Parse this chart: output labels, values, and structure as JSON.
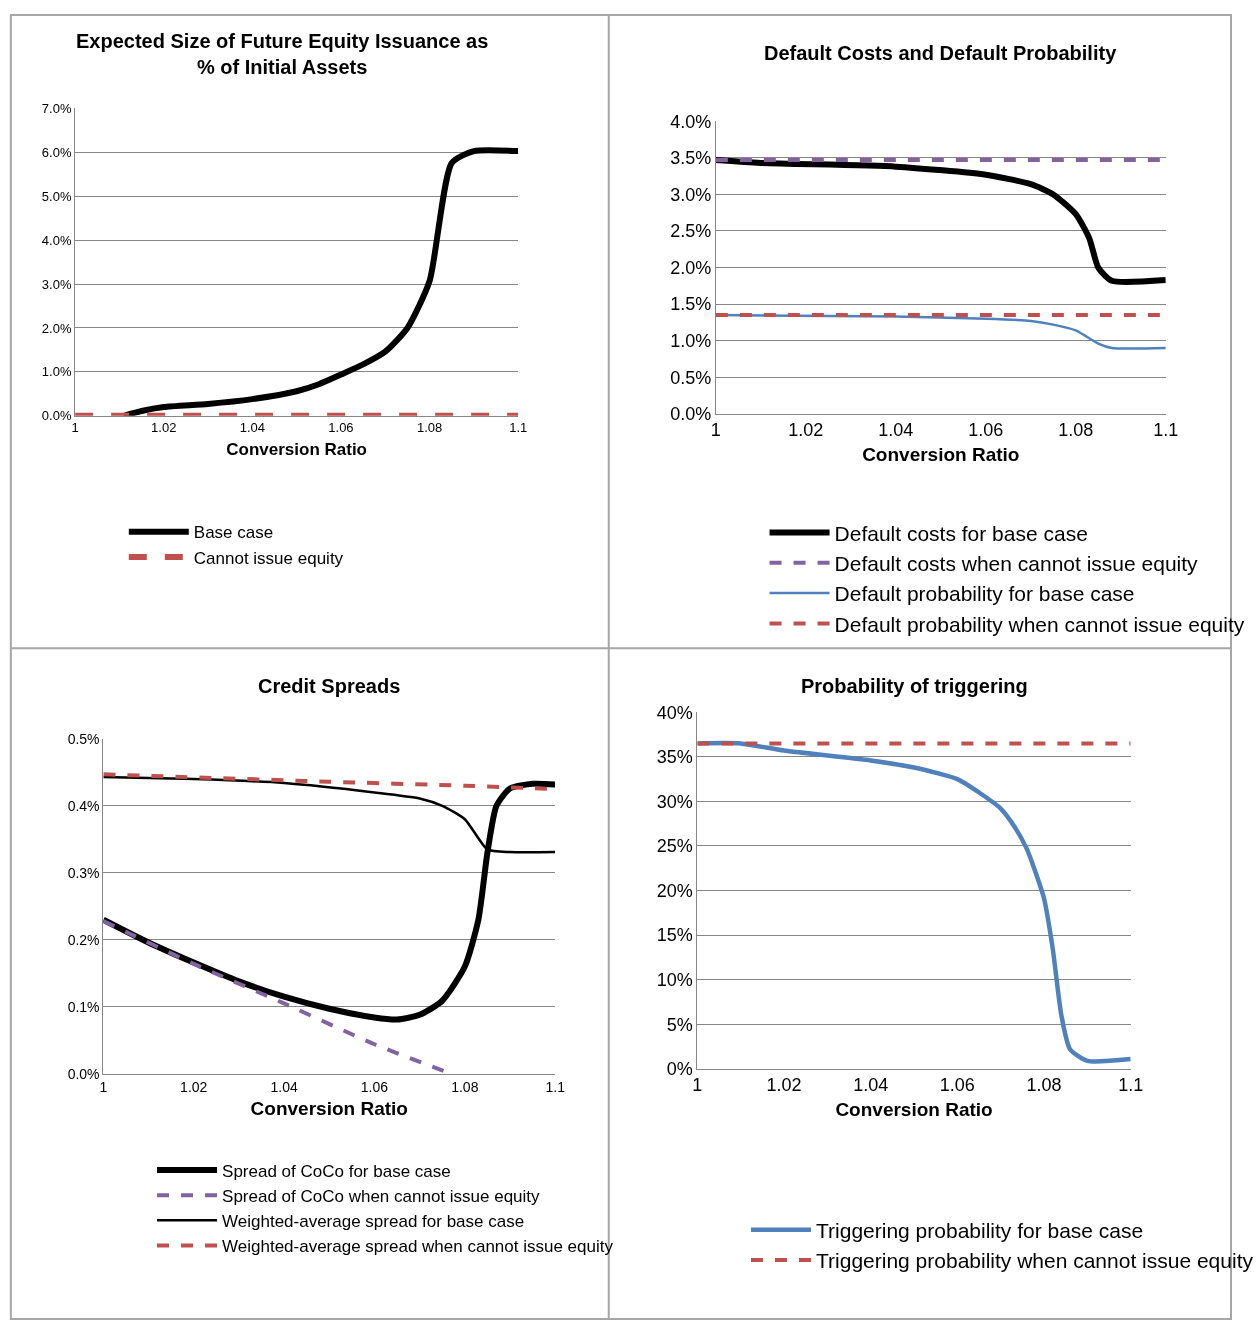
{
  "chart_data": [
    {
      "type": "line",
      "title": "Expected Size of Future Equity Issuance as\n% of Initial Assets",
      "xlabel": "Conversion Ratio",
      "xlim": [
        1,
        1.1
      ],
      "xticks": [
        1,
        1.02,
        1.04,
        1.06,
        1.08,
        1.1
      ],
      "ylim": [
        0,
        7
      ],
      "yticks": [
        {
          "value": 0,
          "label": "0.0%"
        },
        {
          "value": 1,
          "label": "1.0%"
        },
        {
          "value": 2,
          "label": "2.0%"
        },
        {
          "value": 3,
          "label": "3.0%"
        },
        {
          "value": 4,
          "label": "4.0%"
        },
        {
          "value": 5,
          "label": "5.0%"
        },
        {
          "value": 6,
          "label": "6.0%"
        },
        {
          "value": 7,
          "label": "7.0%"
        }
      ],
      "grid": "y",
      "legend": "bottom",
      "marker": "none",
      "series": [
        {
          "name": "Base case",
          "color": "#000000",
          "line_style": "solid",
          "x": [
            1.011,
            1.015,
            1.02,
            1.03,
            1.04,
            1.05,
            1.055,
            1.06,
            1.065,
            1.07,
            1.075,
            1.08,
            1.085,
            1.09,
            1.1
          ],
          "values": [
            0,
            0.11,
            0.2,
            0.27,
            0.38,
            0.56,
            0.72,
            0.94,
            1.17,
            1.46,
            2.0,
            3.07,
            5.76,
            6.03,
            6.03
          ]
        },
        {
          "name": "Cannot issue equity",
          "color": "#c0504d",
          "line_style": "dashed",
          "x": [
            1,
            1.1
          ],
          "values": [
            0,
            0
          ]
        }
      ]
    },
    {
      "type": "line",
      "title": "Default Costs and Default Probability",
      "xlabel": "Conversion Ratio",
      "xlim": [
        1,
        1.1
      ],
      "xticks": [
        1,
        1.02,
        1.04,
        1.06,
        1.08,
        1.1
      ],
      "ylim": [
        0,
        4
      ],
      "yticks": [
        {
          "value": 0,
          "label": "0.0%"
        },
        {
          "value": 0.5,
          "label": "0.5%"
        },
        {
          "value": 1,
          "label": "1.0%"
        },
        {
          "value": 1.5,
          "label": "1.5%"
        },
        {
          "value": 2,
          "label": "2.0%"
        },
        {
          "value": 2.5,
          "label": "2.5%"
        },
        {
          "value": 3,
          "label": "3.0%"
        },
        {
          "value": 3.5,
          "label": "3.5%"
        },
        {
          "value": 4,
          "label": "4.0%"
        }
      ],
      "grid": "y",
      "legend": "bottom",
      "marker": "none",
      "series": [
        {
          "name": "Default costs for base case",
          "color": "#000000",
          "line_style": "solid",
          "x": [
            1,
            1.01,
            1.04,
            1.06,
            1.07,
            1.075,
            1.08,
            1.083,
            1.085,
            1.088,
            1.1
          ],
          "values": [
            3.47,
            3.43,
            3.38,
            3.27,
            3.14,
            3.0,
            2.73,
            2.4,
            2.0,
            1.82,
            1.83
          ]
        },
        {
          "name": "Default costs when cannot issue equity",
          "color": "#8064a2",
          "line_style": "dashed",
          "x": [
            1,
            1.1
          ],
          "values": [
            3.47,
            3.47
          ]
        },
        {
          "name": "Default probability for base case",
          "color": "#4f81bd",
          "line_style": "solid",
          "x": [
            1,
            1.04,
            1.06,
            1.07,
            1.075,
            1.08,
            1.085,
            1.088,
            1.1
          ],
          "values": [
            1.35,
            1.33,
            1.3,
            1.27,
            1.22,
            1.14,
            0.96,
            0.9,
            0.9
          ]
        },
        {
          "name": "Default probability when cannot issue equity",
          "color": "#c0504d",
          "line_style": "dashed",
          "x": [
            1,
            1.1
          ],
          "values": [
            1.35,
            1.35
          ]
        }
      ]
    },
    {
      "type": "line",
      "title": "Credit Spreads",
      "xlabel": "Conversion Ratio",
      "xlim": [
        1,
        1.1
      ],
      "xticks": [
        1,
        1.02,
        1.04,
        1.06,
        1.08,
        1.1
      ],
      "ylim": [
        0,
        0.5
      ],
      "yticks": [
        {
          "value": 0,
          "label": "0.0%"
        },
        {
          "value": 0.1,
          "label": "0.1%"
        },
        {
          "value": 0.2,
          "label": "0.2%"
        },
        {
          "value": 0.3,
          "label": "0.3%"
        },
        {
          "value": 0.4,
          "label": "0.4%"
        },
        {
          "value": 0.5,
          "label": "0.5%"
        }
      ],
      "grid": "y",
      "legend": "bottom",
      "marker": "none",
      "series": [
        {
          "name": "Spread of CoCo for base case",
          "color": "#000000",
          "line_style": "solid",
          "x": [
            1,
            1.01,
            1.02,
            1.03,
            1.04,
            1.05,
            1.06,
            1.065,
            1.07,
            1.075,
            1.08,
            1.083,
            1.085,
            1.087,
            1.09,
            1.095,
            1.1
          ],
          "values": [
            0.23,
            0.196,
            0.166,
            0.138,
            0.115,
            0.097,
            0.084,
            0.081,
            0.088,
            0.109,
            0.16,
            0.23,
            0.33,
            0.4,
            0.426,
            0.433,
            0.432
          ]
        },
        {
          "name": "Spread of CoCo when cannot issue equity",
          "color": "#8064a2",
          "line_style": "dashed",
          "x": [
            1,
            1.02,
            1.04,
            1.06,
            1.077
          ],
          "values": [
            0.228,
            0.164,
            0.105,
            0.044,
            0
          ]
        },
        {
          "name": "Weighted-average spread for base case",
          "color": "#000000",
          "line_style": "solid",
          "x": [
            1,
            1.02,
            1.04,
            1.06,
            1.07,
            1.075,
            1.08,
            1.085,
            1.09,
            1.1
          ],
          "values": [
            0.443,
            0.44,
            0.434,
            0.42,
            0.411,
            0.4,
            0.38,
            0.335,
            0.331,
            0.331
          ]
        },
        {
          "name": "Weighted-average spread when cannot issue equity",
          "color": "#c0504d",
          "line_style": "dashed",
          "x": [
            1,
            1.05,
            1.08,
            1.1
          ],
          "values": [
            0.447,
            0.436,
            0.43,
            0.425
          ]
        }
      ]
    },
    {
      "type": "line",
      "title": "Probability of triggering",
      "xlabel": "Conversion Ratio",
      "xlim": [
        1,
        1.1
      ],
      "xticks": [
        1,
        1.02,
        1.04,
        1.06,
        1.08,
        1.1
      ],
      "ylim": [
        0,
        40
      ],
      "yticks": [
        {
          "value": 0,
          "label": "0%"
        },
        {
          "value": 5,
          "label": "5%"
        },
        {
          "value": 10,
          "label": "10%"
        },
        {
          "value": 15,
          "label": "15%"
        },
        {
          "value": 20,
          "label": "20%"
        },
        {
          "value": 25,
          "label": "25%"
        },
        {
          "value": 30,
          "label": "30%"
        },
        {
          "value": 35,
          "label": "35%"
        },
        {
          "value": 40,
          "label": "40%"
        }
      ],
      "grid": "y",
      "legend": "bottom",
      "marker": "none",
      "series": [
        {
          "name": "Triggering probability for base case",
          "color": "#4f81bd",
          "line_style": "solid",
          "x": [
            1,
            1.01,
            1.02,
            1.04,
            1.05,
            1.06,
            1.065,
            1.07,
            1.073,
            1.076,
            1.078,
            1.08,
            1.082,
            1.084,
            1.086,
            1.09,
            1.1
          ],
          "values": [
            36.5,
            36.5,
            35.7,
            34.6,
            33.8,
            32.5,
            31.0,
            29.2,
            27.3,
            24.7,
            22.1,
            19.1,
            13.5,
            6.0,
            2.2,
            0.9,
            1.1
          ]
        },
        {
          "name": "Triggering probability when cannot issue equity",
          "color": "#c0504d",
          "line_style": "dashed",
          "x": [
            1,
            1.1
          ],
          "values": [
            36.5,
            36.5
          ]
        }
      ]
    }
  ]
}
